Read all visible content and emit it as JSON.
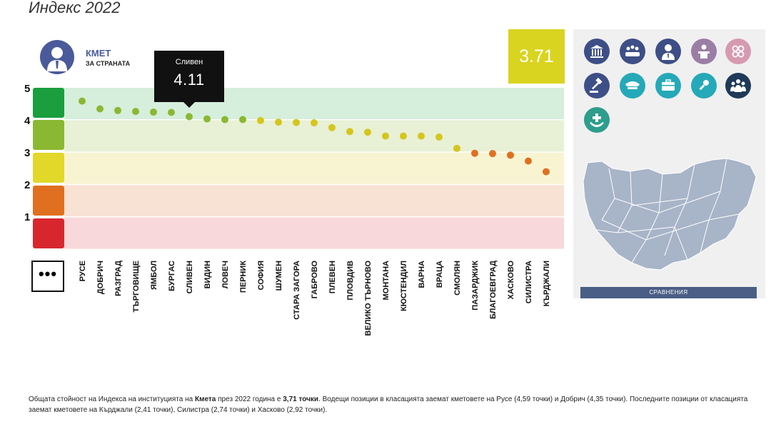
{
  "page": {
    "title": "Индекс 2022"
  },
  "institution": {
    "name": "КМЕТ",
    "subtitle": "ЗА СТРАНАТА",
    "score": "3.71"
  },
  "tooltip": {
    "city": "Сливен",
    "value": "4.11"
  },
  "more_label": "•••",
  "compare_label": "СРАВНЕНИЯ",
  "colors": {
    "grade_5": "#1a9e3e",
    "grade_4": "#8ab833",
    "grade_3": "#e2d82a",
    "grade_2": "#e07020",
    "grade_1": "#d8262e",
    "band_5": "#d6eedc",
    "band_4": "#e8f0d6",
    "band_3": "#f8f4d2",
    "band_2": "#f8e2d4",
    "band_1": "#f8d8da",
    "score_box": "#d9d420",
    "icon_blue": "#3d4f86",
    "icon_mauve": "#9a7ea6",
    "icon_pink": "#d69ab0",
    "icon_teal": "#25a9b8",
    "icon_dark": "#1f3958",
    "icon_green": "#2d9d8c",
    "map_fill": "#a8b4c8"
  },
  "icons": [
    "institution-building-icon",
    "assembly-icon",
    "person-icon",
    "speaker-icon",
    "rings-icon",
    "gavel-icon",
    "police-cap-icon",
    "briefcase-icon",
    "microphone-icon",
    "people-group-icon",
    "health-hands-icon"
  ],
  "chart_data": {
    "type": "scatter",
    "title": "",
    "ylim": [
      0,
      5
    ],
    "yticks": [
      "1",
      "2",
      "3",
      "4",
      "5"
    ],
    "categories": [
      "РУСЕ",
      "ДОБРИЧ",
      "РАЗГРАД",
      "ТЪРГОВИЩЕ",
      "ЯМБОЛ",
      "БУРГАС",
      "СЛИВЕН",
      "ВИДИН",
      "ЛОВЕЧ",
      "ПЕРНИК",
      "СОФИЯ",
      "ШУМЕН",
      "СТАРА ЗАГОРА",
      "ГАБРОВО",
      "ПЛЕВЕН",
      "ПЛОВДИВ",
      "ВЕЛИКО ТЪРНОВО",
      "МОНТАНА",
      "КЮСТЕНДИЛ",
      "ВАРНА",
      "ВРАЦА",
      "СМОЛЯН",
      "ПАЗАРДЖИК",
      "БЛАГОЕВГРАД",
      "ХАСКОВО",
      "СИЛИСТРА",
      "КЪРДЖАЛИ"
    ],
    "values": [
      4.59,
      4.35,
      4.3,
      4.27,
      4.25,
      4.24,
      4.11,
      4.04,
      4.02,
      4.02,
      3.99,
      3.94,
      3.93,
      3.92,
      3.77,
      3.65,
      3.63,
      3.51,
      3.51,
      3.51,
      3.48,
      3.13,
      2.98,
      2.97,
      2.92,
      2.74,
      2.41
    ],
    "point_colors": [
      "#8ab833",
      "#8ab833",
      "#8ab833",
      "#8ab833",
      "#8ab833",
      "#8ab833",
      "#8ab833",
      "#8ab833",
      "#8ab833",
      "#8ab833",
      "#d4c61c",
      "#d4c61c",
      "#d4c61c",
      "#d4c61c",
      "#d4c61c",
      "#d4c61c",
      "#d4c61c",
      "#d4c61c",
      "#d4c61c",
      "#d4c61c",
      "#d4c61c",
      "#d4c61c",
      "#e07020",
      "#e07020",
      "#e07020",
      "#e07020",
      "#e07020"
    ]
  },
  "footnote": {
    "p1": "Общата стойност на Индекса на институцията на ",
    "b1": "Кмета",
    "p2": " през 2022 година е ",
    "b2": "3,71 точки",
    "p3": ". Водещи позиции в класацията заемат кметовете на Русе (4,59 точки) и Добрич (4,35 точки). Последните позиции от класацията заемат кметовете на Кърджали (2,41 точки), Силистра (2,74 точки) и Хасково (2,92 точки)."
  }
}
